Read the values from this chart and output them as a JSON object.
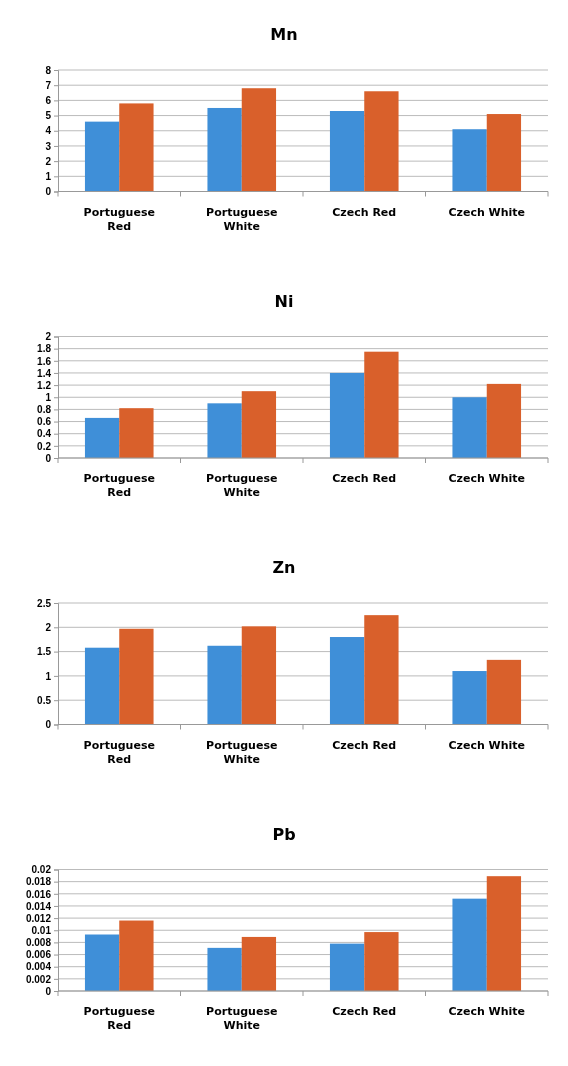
{
  "chart_data": [
    {
      "type": "bar",
      "title": "Mn",
      "categories": [
        "Portuguese Red",
        "Portuguese White",
        "Czech Red",
        "Czech White"
      ],
      "series": [
        {
          "color": "#3f8fd8",
          "values": [
            4.6,
            5.5,
            5.3,
            4.1
          ]
        },
        {
          "color": "#d9602b",
          "values": [
            5.8,
            6.8,
            6.6,
            5.1
          ]
        }
      ],
      "ylim": [
        0,
        8
      ],
      "yticks": [
        0,
        1,
        2,
        3,
        4,
        5,
        6,
        7,
        8
      ],
      "grid": "y"
    },
    {
      "type": "bar",
      "title": "Ni",
      "categories": [
        "Portuguese Red",
        "Portuguese White",
        "Czech Red",
        "Czech White"
      ],
      "series": [
        {
          "color": "#3f8fd8",
          "values": [
            0.66,
            0.9,
            1.4,
            1.0
          ]
        },
        {
          "color": "#d9602b",
          "values": [
            0.82,
            1.1,
            1.75,
            1.22
          ]
        }
      ],
      "ylim": [
        0,
        2
      ],
      "yticks": [
        0,
        0.2,
        0.4,
        0.6,
        0.8,
        1,
        1.2,
        1.4,
        1.6,
        1.8,
        2
      ],
      "grid": "y"
    },
    {
      "type": "bar",
      "title": "Zn",
      "categories": [
        "Portuguese Red",
        "Portuguese White",
        "Czech Red",
        "Czech White"
      ],
      "series": [
        {
          "color": "#3f8fd8",
          "values": [
            1.58,
            1.62,
            1.8,
            1.1
          ]
        },
        {
          "color": "#d9602b",
          "values": [
            1.97,
            2.02,
            2.25,
            1.33
          ]
        }
      ],
      "ylim": [
        0,
        2.5
      ],
      "yticks": [
        0,
        0.5,
        1,
        1.5,
        2,
        2.5
      ],
      "grid": "y"
    },
    {
      "type": "bar",
      "title": "Pb",
      "categories": [
        "Portuguese Red",
        "Portuguese White",
        "Czech Red",
        "Czech White"
      ],
      "series": [
        {
          "color": "#3f8fd8",
          "values": [
            0.0093,
            0.0071,
            0.0078,
            0.0152
          ]
        },
        {
          "color": "#d9602b",
          "values": [
            0.0116,
            0.0089,
            0.0097,
            0.0189
          ]
        }
      ],
      "ylim": [
        0,
        0.02
      ],
      "yticks": [
        0,
        0.002,
        0.004,
        0.006,
        0.008,
        0.01,
        0.012,
        0.014,
        0.016,
        0.018,
        0.02
      ],
      "grid": "y"
    }
  ]
}
